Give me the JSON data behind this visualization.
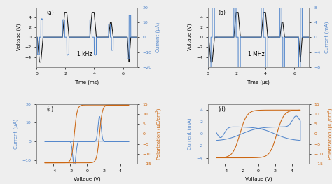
{
  "fig_width": 4.74,
  "fig_height": 2.63,
  "dpi": 100,
  "background_color": "#eeeeee",
  "blue_color": "#5588CC",
  "black_color": "#111111",
  "orange_color": "#CC6611",
  "panel_labels": [
    "(a)",
    "(b)",
    "(c)",
    "(d)"
  ],
  "ax_a": {
    "xlabel": "Time (ms)",
    "ylabel_left": "Voltage (V)",
    "ylabel_right": "Current (μA)",
    "annotation": "1 kHz",
    "xlim": [
      0,
      7
    ],
    "ylim_left": [
      -6,
      6
    ],
    "ylim_right": [
      -20,
      20
    ],
    "xticks": [
      0,
      2,
      4,
      6
    ],
    "yticks_left": [
      -4,
      -2,
      0,
      2,
      4
    ],
    "yticks_right": [
      -20,
      -10,
      0,
      10,
      20
    ]
  },
  "ax_b": {
    "xlabel": "Time (μs)",
    "ylabel_left": "Voltage (V)",
    "ylabel_right": "Current (mA)",
    "annotation": "1 MHz",
    "xlim": [
      0,
      7
    ],
    "ylim_left": [
      -6,
      6
    ],
    "ylim_right": [
      -8,
      8
    ],
    "xticks": [
      0,
      2,
      4,
      6
    ],
    "yticks_left": [
      -4,
      -2,
      0,
      2,
      4
    ],
    "yticks_right": [
      -8,
      -4,
      0,
      4,
      8
    ]
  },
  "ax_c": {
    "xlabel": "Voltage (V)",
    "ylabel_left": "Current (μA)",
    "ylabel_right": "Polarization (μC/cm²)",
    "xlim": [
      -6,
      6
    ],
    "ylim_left": [
      -12,
      20
    ],
    "ylim_right": [
      -15,
      15
    ],
    "xticks": [
      -4,
      -2,
      0,
      2,
      4
    ],
    "yticks_left": [
      -10,
      0,
      10,
      20
    ],
    "yticks_right": [
      -15,
      -10,
      -5,
      0,
      5,
      10,
      15
    ]
  },
  "ax_d": {
    "xlabel": "Voltage (V)",
    "ylabel_left": "Current (mA)",
    "ylabel_right": "Polarization (μC/cm²)",
    "xlim": [
      -6,
      6
    ],
    "ylim_left": [
      -5,
      5
    ],
    "ylim_right": [
      -15,
      15
    ],
    "xticks": [
      -4,
      -2,
      0,
      2,
      4
    ],
    "yticks_left": [
      -4,
      -2,
      0,
      2,
      4
    ],
    "yticks_right": [
      -15,
      -10,
      -5,
      0,
      5,
      10,
      15
    ]
  }
}
